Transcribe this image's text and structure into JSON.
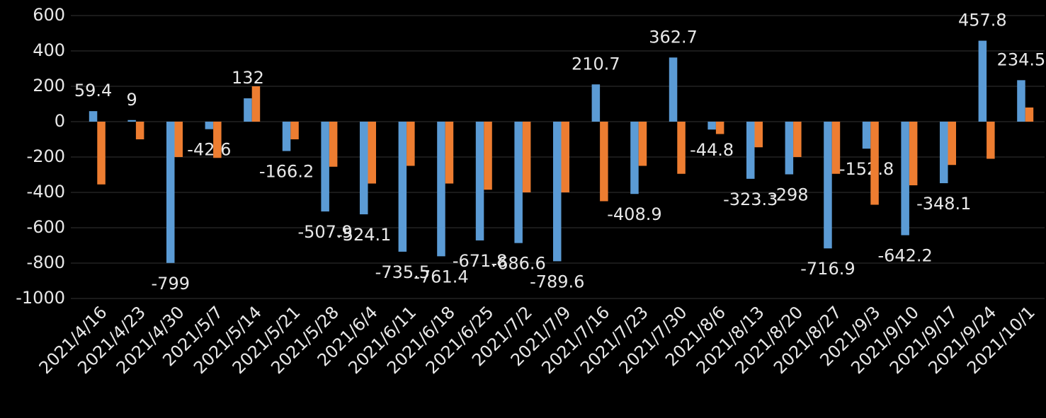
{
  "chart_data": {
    "type": "bar",
    "categories": [
      "2021/4/16",
      "2021/4/23",
      "2021/4/30",
      "2021/5/7",
      "2021/5/14",
      "2021/5/21",
      "2021/5/28",
      "2021/6/4",
      "2021/6/11",
      "2021/6/18",
      "2021/6/25",
      "2021/7/2",
      "2021/7/9",
      "2021/7/16",
      "2021/7/23",
      "2021/7/30",
      "2021/8/6",
      "2021/8/13",
      "2021/8/20",
      "2021/8/27",
      "2021/9/3",
      "2021/9/10",
      "2021/9/17",
      "2021/9/24",
      "2021/10/1"
    ],
    "series": [
      {
        "color": "#5b9bd5",
        "data_labels": true,
        "values": [
          59.4,
          9,
          -799,
          -42.6,
          132,
          -166.2,
          -507.9,
          -524.1,
          -735.5,
          -761.4,
          -671.8,
          -686.6,
          -789.6,
          210.7,
          -408.9,
          362.7,
          -44.8,
          -323.3,
          -298,
          -716.9,
          -152.8,
          -642.2,
          -348.1,
          457.8,
          234.5
        ]
      },
      {
        "color": "#ed7d31",
        "data_labels": false,
        "values": [
          -355,
          -100,
          -200,
          -205,
          200,
          -100,
          -255,
          -350,
          -250,
          -350,
          -385,
          -400,
          -400,
          -450,
          -250,
          -295,
          -70,
          -145,
          -200,
          -295,
          -470,
          -360,
          -245,
          -210,
          80
        ]
      }
    ],
    "ylim": [
      -1000,
      600
    ],
    "yticks": [
      -1000,
      -800,
      -600,
      -400,
      -200,
      0,
      200,
      400,
      600
    ],
    "grid": true
  }
}
